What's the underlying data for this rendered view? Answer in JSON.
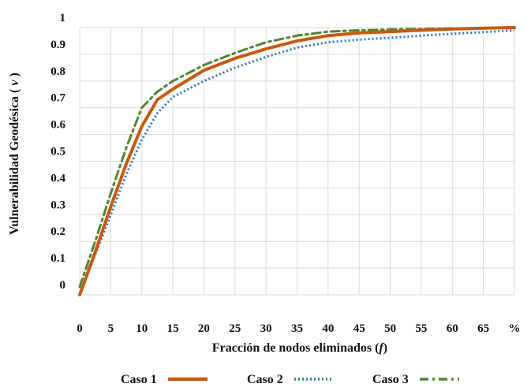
{
  "chart_data": {
    "type": "line",
    "xlabel": "Fracción de nodos eliminados",
    "xlabel_symbol": "f",
    "ylabel": "Vulnerabilidad Geodésica",
    "ylabel_symbol": "v",
    "x_ticks": [
      "0",
      "5",
      "10",
      "15",
      "20",
      "25",
      "30",
      "35",
      "40",
      "45",
      "50",
      "55",
      "60",
      "65",
      "%"
    ],
    "y_ticks": [
      "0",
      "0.1",
      "0.2",
      "0.3",
      "0.4",
      "0.5",
      "0.6",
      "0.7",
      "0.8",
      "0.9",
      "1"
    ],
    "xlim": [
      0,
      70
    ],
    "ylim": [
      0,
      1
    ],
    "grid": true,
    "legend_position": "bottom",
    "series": [
      {
        "name": "Caso 1",
        "color": "#C55A11",
        "style": "solid",
        "x": [
          0,
          2.5,
          5,
          7.5,
          10,
          12.5,
          15,
          20,
          25,
          30,
          35,
          40,
          45,
          50,
          55,
          60,
          65,
          70
        ],
        "y": [
          0,
          0.16,
          0.33,
          0.49,
          0.63,
          0.73,
          0.77,
          0.84,
          0.885,
          0.92,
          0.95,
          0.97,
          0.98,
          0.985,
          0.99,
          0.995,
          0.998,
          1.0
        ]
      },
      {
        "name": "Caso 2",
        "color": "#2E75B6",
        "style": "dotted",
        "x": [
          0,
          2.5,
          5,
          7.5,
          10,
          12.5,
          15,
          20,
          25,
          30,
          35,
          40,
          45,
          50,
          55,
          60,
          65,
          70
        ],
        "y": [
          0,
          0.15,
          0.3,
          0.45,
          0.58,
          0.68,
          0.74,
          0.8,
          0.85,
          0.89,
          0.925,
          0.945,
          0.955,
          0.962,
          0.97,
          0.977,
          0.983,
          0.99
        ]
      },
      {
        "name": "Caso 3",
        "color": "#548235",
        "style": "dashdot",
        "x": [
          0,
          2.5,
          5,
          7.5,
          10,
          12.5,
          15,
          20,
          25,
          30,
          35,
          40,
          45,
          50,
          55,
          60,
          65,
          70
        ],
        "y": [
          0.03,
          0.2,
          0.38,
          0.55,
          0.7,
          0.76,
          0.8,
          0.86,
          0.905,
          0.945,
          0.97,
          0.985,
          0.99,
          0.993,
          0.995,
          0.997,
          0.998,
          0.999
        ]
      }
    ]
  }
}
